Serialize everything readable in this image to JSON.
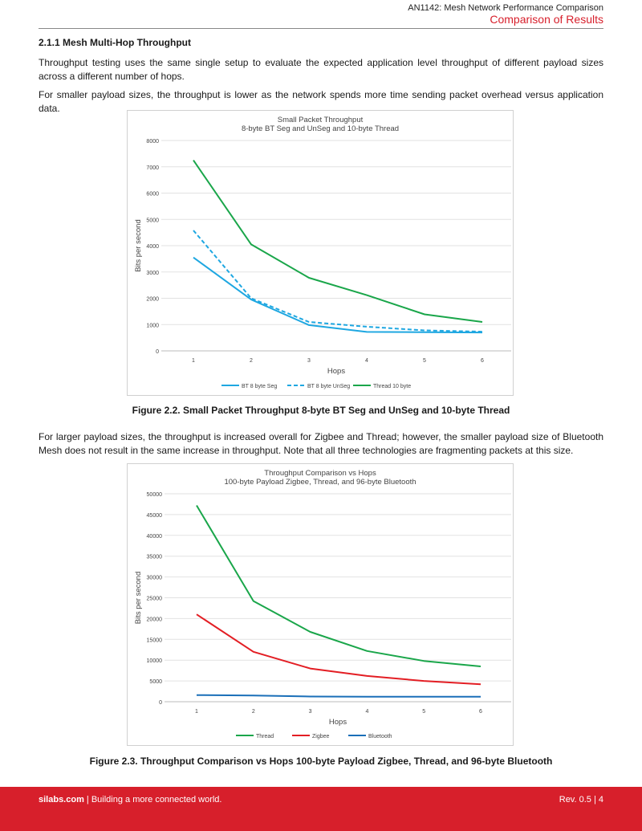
{
  "header": {
    "doc_title": "AN1142: Mesh Network Performance Comparison",
    "section_title": "Comparison of Results"
  },
  "section": {
    "heading": "2.1.1  Mesh Multi-Hop Throughput",
    "para1": "Throughput testing uses the same single setup to evaluate the expected application level throughput of different payload sizes across a different number of hops.",
    "para2": "For smaller payload sizes, the throughput is lower as the network spends more time sending packet overhead versus application data.",
    "para3": "For larger payload sizes, the throughput is increased overall for Zigbee and Thread; however, the smaller payload size of Bluetooth Mesh does not result in the same increase in throughput. Note that all three technologies are fragmenting packets at this size."
  },
  "figures": [
    {
      "caption": "Figure 2.2.  Small Packet Throughput 8-byte BT Seg and UnSeg and 10-byte Thread"
    },
    {
      "caption": "Figure 2.3.  Throughput Comparison vs Hops 100-byte Payload Zigbee, Thread, and 96-byte Bluetooth"
    }
  ],
  "footer": {
    "site": "silabs.com",
    "tagline": " | Building a more connected world.",
    "rev": "Rev. 0.5  |  4"
  },
  "chart_data": [
    {
      "type": "line",
      "title": "Small Packet Throughput",
      "subtitle": "8-byte BT Seg and UnSeg and 10-byte Thread",
      "xlabel": "Hops",
      "ylabel": "Bits per second",
      "x": [
        1,
        2,
        3,
        4,
        5,
        6
      ],
      "ylim": [
        0,
        8000
      ],
      "yticks": [
        0,
        1000,
        2000,
        3000,
        4000,
        5000,
        6000,
        7000,
        8000
      ],
      "grid": true,
      "legend": "bottom",
      "series": [
        {
          "name": "BT 8 byte Seg",
          "color": "#1ea7e1",
          "dash": false,
          "values": [
            3550,
            1950,
            980,
            720,
            710,
            700
          ]
        },
        {
          "name": "BT 8 byte UnSeg",
          "color": "#1ea7e1",
          "dash": true,
          "values": [
            4580,
            2000,
            1100,
            920,
            780,
            730
          ]
        },
        {
          "name": "Thread 10 byte",
          "color": "#1aa64a",
          "dash": false,
          "values": [
            7250,
            4050,
            2780,
            2120,
            1390,
            1100
          ]
        }
      ]
    },
    {
      "type": "line",
      "title": "Throughput Comparison vs Hops",
      "subtitle": "100-byte Payload Zigbee, Thread, and 96-byte Bluetooth",
      "xlabel": "Hops",
      "ylabel": "Bits per second",
      "x": [
        1,
        2,
        3,
        4,
        5,
        6
      ],
      "ylim": [
        0,
        50000
      ],
      "yticks": [
        0,
        5000,
        10000,
        15000,
        20000,
        25000,
        30000,
        35000,
        40000,
        45000,
        50000
      ],
      "grid": true,
      "legend": "bottom",
      "series": [
        {
          "name": "Thread",
          "color": "#1aa64a",
          "dash": false,
          "values": [
            47200,
            24200,
            16800,
            12200,
            9800,
            8500
          ]
        },
        {
          "name": "Zigbee",
          "color": "#e31e24",
          "dash": false,
          "values": [
            21000,
            12000,
            8000,
            6200,
            5000,
            4200
          ]
        },
        {
          "name": "Bluetooth",
          "color": "#1a6fb8",
          "dash": false,
          "values": [
            1600,
            1500,
            1250,
            1200,
            1200,
            1200
          ]
        }
      ]
    }
  ]
}
